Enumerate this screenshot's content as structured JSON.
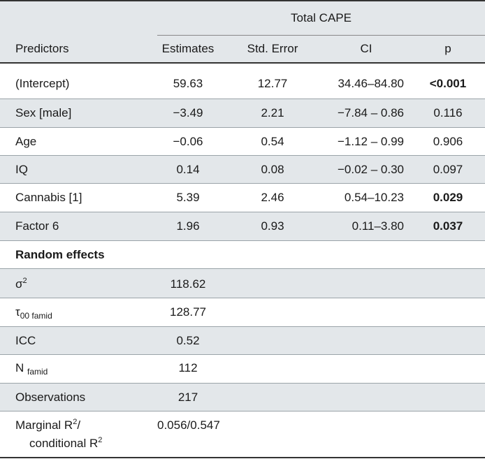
{
  "header": {
    "group_label": "Total CAPE",
    "columns": [
      "Predictors",
      "Estimates",
      "Std. Error",
      "CI",
      "p"
    ]
  },
  "rows": [
    {
      "predictor": "(Intercept)",
      "estimate": "59.63",
      "std_error": "12.77",
      "ci": "34.46–84.80",
      "p": "<0.001",
      "p_bold": true
    },
    {
      "predictor": "Sex [male]",
      "estimate": "−3.49",
      "std_error": "2.21",
      "ci": "−7.84 – 0.86",
      "p": "0.116",
      "p_bold": false
    },
    {
      "predictor": "Age",
      "estimate": "−0.06",
      "std_error": "0.54",
      "ci": "−1.12 – 0.99",
      "p": "0.906",
      "p_bold": false
    },
    {
      "predictor": "IQ",
      "estimate": "0.14",
      "std_error": "0.08",
      "ci": "−0.02 – 0.30",
      "p": "0.097",
      "p_bold": false
    },
    {
      "predictor": "Cannabis [1]",
      "estimate": "5.39",
      "std_error": "2.46",
      "ci": "0.54–10.23",
      "p": "0.029",
      "p_bold": true
    },
    {
      "predictor": "Factor 6",
      "estimate": "1.96",
      "std_error": "0.93",
      "ci": "0.11–3.80",
      "p": "0.037",
      "p_bold": true
    }
  ],
  "random_effects": {
    "title": "Random effects",
    "sigma2": {
      "symbol": "σ",
      "sup": "2",
      "value": "118.62"
    },
    "tau00": {
      "symbol": "τ",
      "sub": "00 famid",
      "value": "128.77"
    },
    "icc": {
      "label": "ICC",
      "value": "0.52"
    },
    "n_famid": {
      "label": "N",
      "sub": "famid",
      "value": "112"
    },
    "observations": {
      "label": "Observations",
      "value": "217"
    },
    "r2": {
      "line1_a": "Marginal R",
      "line1_sup": "2",
      "line1_b": "/",
      "line2_a": "conditional R",
      "line2_sup": "2",
      "value": "0.056/0.547"
    }
  }
}
